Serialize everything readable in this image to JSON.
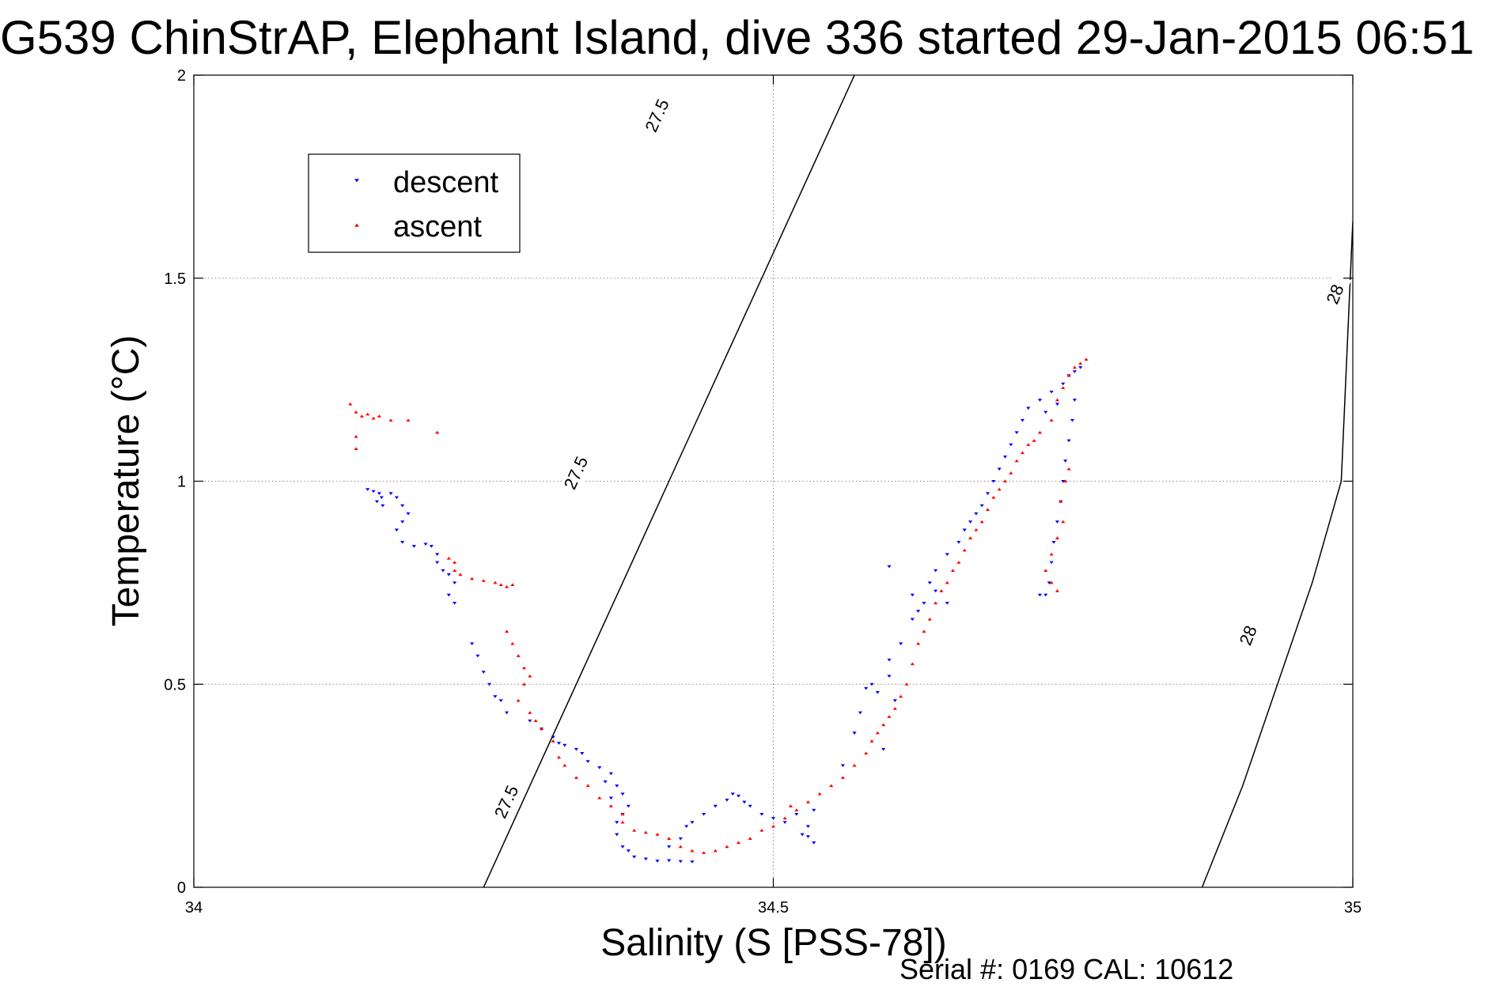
{
  "chart_data": {
    "type": "scatter",
    "title": "G539 ChinStrAP, Elephant Island, dive 336 started 29-Jan-2015 06:51",
    "xlabel": "Salinity (S [PSS-78])",
    "ylabel": "Temperature (°C)",
    "xlim": [
      34,
      35
    ],
    "ylim": [
      0,
      2
    ],
    "x_ticks": [
      "34",
      "34.5",
      "35"
    ],
    "y_ticks": [
      "0",
      "0.5",
      "1",
      "1.5",
      "2"
    ],
    "grid": true,
    "legend_position": "top-left",
    "footer": "Serial #: 0169 CAL: 10612",
    "contours": [
      {
        "label": "27.5",
        "color": "#000000",
        "points": [
          [
            34.25,
            0
          ],
          [
            34.29,
            0.25
          ],
          [
            34.33,
            0.5
          ],
          [
            34.37,
            0.75
          ],
          [
            34.41,
            1.0
          ],
          [
            34.45,
            1.25
          ],
          [
            34.49,
            1.5
          ],
          [
            34.53,
            1.75
          ],
          [
            34.57,
            2.0
          ]
        ],
        "label_positions": [
          [
            34.27,
            0.21
          ],
          [
            34.33,
            1.02
          ],
          [
            34.4,
            1.9
          ]
        ]
      },
      {
        "label": "28",
        "color": "#000000",
        "points": [
          [
            34.87,
            0
          ],
          [
            34.905,
            0.25
          ],
          [
            34.935,
            0.5
          ],
          [
            34.965,
            0.75
          ],
          [
            34.99,
            1.0
          ],
          [
            35.0,
            1.64
          ]
        ],
        "label_positions": [
          [
            34.91,
            0.62
          ],
          [
            34.985,
            1.46
          ]
        ]
      }
    ],
    "series": [
      {
        "name": "descent",
        "color": "#0000ff",
        "marker": "triangle-down",
        "points": [
          [
            34.15,
            0.98
          ],
          [
            34.155,
            0.975
          ],
          [
            34.16,
            0.97
          ],
          [
            34.162,
            0.96
          ],
          [
            34.158,
            0.95
          ],
          [
            34.163,
            0.94
          ],
          [
            34.17,
            0.97
          ],
          [
            34.175,
            0.96
          ],
          [
            34.18,
            0.94
          ],
          [
            34.185,
            0.92
          ],
          [
            34.18,
            0.9
          ],
          [
            34.175,
            0.88
          ],
          [
            34.18,
            0.85
          ],
          [
            34.19,
            0.84
          ],
          [
            34.2,
            0.845
          ],
          [
            34.205,
            0.84
          ],
          [
            34.21,
            0.82
          ],
          [
            34.21,
            0.8
          ],
          [
            34.215,
            0.78
          ],
          [
            34.22,
            0.77
          ],
          [
            34.225,
            0.75
          ],
          [
            34.22,
            0.72
          ],
          [
            34.225,
            0.7
          ],
          [
            34.24,
            0.6
          ],
          [
            34.245,
            0.57
          ],
          [
            34.25,
            0.53
          ],
          [
            34.255,
            0.5
          ],
          [
            34.26,
            0.47
          ],
          [
            34.265,
            0.46
          ],
          [
            34.27,
            0.43
          ],
          [
            34.29,
            0.41
          ],
          [
            34.3,
            0.39
          ],
          [
            34.31,
            0.37
          ],
          [
            34.315,
            0.355
          ],
          [
            34.32,
            0.35
          ],
          [
            34.33,
            0.34
          ],
          [
            34.335,
            0.33
          ],
          [
            34.34,
            0.31
          ],
          [
            34.35,
            0.295
          ],
          [
            34.36,
            0.28
          ],
          [
            34.355,
            0.26
          ],
          [
            34.365,
            0.25
          ],
          [
            34.37,
            0.23
          ],
          [
            34.36,
            0.22
          ],
          [
            34.375,
            0.2
          ],
          [
            34.37,
            0.18
          ],
          [
            34.365,
            0.16
          ],
          [
            34.365,
            0.13
          ],
          [
            34.37,
            0.1
          ],
          [
            34.375,
            0.09
          ],
          [
            34.38,
            0.075
          ],
          [
            34.39,
            0.07
          ],
          [
            34.4,
            0.065
          ],
          [
            34.41,
            0.066
          ],
          [
            34.42,
            0.064
          ],
          [
            34.43,
            0.063
          ],
          [
            34.41,
            0.1
          ],
          [
            34.42,
            0.12
          ],
          [
            34.425,
            0.15
          ],
          [
            34.43,
            0.16
          ],
          [
            34.44,
            0.18
          ],
          [
            34.45,
            0.2
          ],
          [
            34.46,
            0.215
          ],
          [
            34.465,
            0.23
          ],
          [
            34.47,
            0.225
          ],
          [
            34.475,
            0.21
          ],
          [
            34.48,
            0.2
          ],
          [
            34.49,
            0.18
          ],
          [
            34.5,
            0.17
          ],
          [
            34.51,
            0.16
          ],
          [
            34.52,
            0.18
          ],
          [
            34.525,
            0.13
          ],
          [
            34.53,
            0.125
          ],
          [
            34.535,
            0.11
          ],
          [
            34.53,
            0.15
          ],
          [
            34.535,
            0.19
          ],
          [
            34.56,
            0.3
          ],
          [
            34.57,
            0.38
          ],
          [
            34.575,
            0.43
          ],
          [
            34.58,
            0.49
          ],
          [
            34.585,
            0.5
          ],
          [
            34.59,
            0.48
          ],
          [
            34.6,
            0.52
          ],
          [
            34.605,
            0.46
          ],
          [
            34.595,
            0.34
          ],
          [
            34.6,
            0.56
          ],
          [
            34.61,
            0.6
          ],
          [
            34.62,
            0.66
          ],
          [
            34.625,
            0.68
          ],
          [
            34.6,
            0.79
          ],
          [
            34.62,
            0.72
          ],
          [
            34.63,
            0.7
          ],
          [
            34.635,
            0.75
          ],
          [
            34.64,
            0.73
          ],
          [
            34.65,
            0.7
          ],
          [
            34.64,
            0.78
          ],
          [
            34.65,
            0.82
          ],
          [
            34.66,
            0.85
          ],
          [
            34.665,
            0.88
          ],
          [
            34.67,
            0.9
          ],
          [
            34.675,
            0.92
          ],
          [
            34.68,
            0.94
          ],
          [
            34.685,
            0.97
          ],
          [
            34.69,
            1.0
          ],
          [
            34.695,
            1.03
          ],
          [
            34.7,
            1.06
          ],
          [
            34.705,
            1.09
          ],
          [
            34.71,
            1.12
          ],
          [
            34.715,
            1.15
          ],
          [
            34.72,
            1.18
          ],
          [
            34.73,
            1.2
          ],
          [
            34.735,
            1.17
          ],
          [
            34.74,
            1.22
          ],
          [
            34.745,
            1.19
          ],
          [
            34.75,
            1.24
          ],
          [
            34.755,
            1.26
          ],
          [
            34.76,
            1.27
          ],
          [
            34.765,
            1.28
          ],
          [
            34.76,
            1.2
          ],
          [
            34.758,
            1.15
          ],
          [
            34.755,
            1.1
          ],
          [
            34.752,
            1.05
          ],
          [
            34.75,
            1.0
          ],
          [
            34.748,
            0.95
          ],
          [
            34.745,
            0.9
          ],
          [
            34.742,
            0.85
          ],
          [
            34.74,
            0.8
          ],
          [
            34.738,
            0.75
          ],
          [
            34.735,
            0.72
          ],
          [
            34.73,
            0.72
          ]
        ]
      },
      {
        "name": "ascent",
        "color": "#ff0000",
        "marker": "triangle-up",
        "points": [
          [
            34.135,
            1.19
          ],
          [
            34.14,
            1.17
          ],
          [
            34.145,
            1.16
          ],
          [
            34.15,
            1.165
          ],
          [
            34.155,
            1.155
          ],
          [
            34.16,
            1.16
          ],
          [
            34.17,
            1.15
          ],
          [
            34.185,
            1.15
          ],
          [
            34.21,
            1.12
          ],
          [
            34.14,
            1.11
          ],
          [
            34.14,
            1.08
          ],
          [
            34.22,
            0.81
          ],
          [
            34.225,
            0.8
          ],
          [
            34.225,
            0.78
          ],
          [
            34.23,
            0.77
          ],
          [
            34.24,
            0.76
          ],
          [
            34.25,
            0.755
          ],
          [
            34.26,
            0.75
          ],
          [
            34.265,
            0.745
          ],
          [
            34.27,
            0.74
          ],
          [
            34.275,
            0.745
          ],
          [
            34.27,
            0.63
          ],
          [
            34.275,
            0.6
          ],
          [
            34.28,
            0.57
          ],
          [
            34.285,
            0.54
          ],
          [
            34.29,
            0.52
          ],
          [
            34.285,
            0.5
          ],
          [
            34.28,
            0.46
          ],
          [
            34.29,
            0.43
          ],
          [
            34.295,
            0.41
          ],
          [
            34.3,
            0.39
          ],
          [
            34.31,
            0.36
          ],
          [
            34.315,
            0.32
          ],
          [
            34.32,
            0.3
          ],
          [
            34.33,
            0.27
          ],
          [
            34.34,
            0.25
          ],
          [
            34.35,
            0.22
          ],
          [
            34.36,
            0.2
          ],
          [
            34.37,
            0.18
          ],
          [
            34.37,
            0.16
          ],
          [
            34.38,
            0.14
          ],
          [
            34.39,
            0.135
          ],
          [
            34.4,
            0.13
          ],
          [
            34.41,
            0.12
          ],
          [
            34.42,
            0.1
          ],
          [
            34.43,
            0.09
          ],
          [
            34.44,
            0.085
          ],
          [
            34.45,
            0.09
          ],
          [
            34.46,
            0.1
          ],
          [
            34.47,
            0.11
          ],
          [
            34.48,
            0.12
          ],
          [
            34.49,
            0.14
          ],
          [
            34.5,
            0.15
          ],
          [
            34.51,
            0.17
          ],
          [
            34.515,
            0.2
          ],
          [
            34.52,
            0.19
          ],
          [
            34.53,
            0.21
          ],
          [
            34.54,
            0.23
          ],
          [
            34.55,
            0.25
          ],
          [
            34.56,
            0.27
          ],
          [
            34.57,
            0.3
          ],
          [
            34.58,
            0.33
          ],
          [
            34.585,
            0.36
          ],
          [
            34.59,
            0.38
          ],
          [
            34.595,
            0.4
          ],
          [
            34.6,
            0.42
          ],
          [
            34.605,
            0.44
          ],
          [
            34.61,
            0.47
          ],
          [
            34.615,
            0.5
          ],
          [
            34.62,
            0.55
          ],
          [
            34.625,
            0.6
          ],
          [
            34.63,
            0.63
          ],
          [
            34.635,
            0.66
          ],
          [
            34.64,
            0.7
          ],
          [
            34.645,
            0.73
          ],
          [
            34.65,
            0.75
          ],
          [
            34.655,
            0.78
          ],
          [
            34.66,
            0.8
          ],
          [
            34.665,
            0.83
          ],
          [
            34.67,
            0.86
          ],
          [
            34.675,
            0.88
          ],
          [
            34.68,
            0.9
          ],
          [
            34.685,
            0.93
          ],
          [
            34.69,
            0.96
          ],
          [
            34.695,
            0.98
          ],
          [
            34.7,
            1.0
          ],
          [
            34.705,
            1.02
          ],
          [
            34.71,
            1.05
          ],
          [
            34.715,
            1.07
          ],
          [
            34.72,
            1.09
          ],
          [
            34.725,
            1.1
          ],
          [
            34.73,
            1.12
          ],
          [
            34.74,
            1.15
          ],
          [
            34.745,
            1.2
          ],
          [
            34.75,
            1.23
          ],
          [
            34.755,
            1.26
          ],
          [
            34.76,
            1.28
          ],
          [
            34.765,
            1.29
          ],
          [
            34.77,
            1.3
          ],
          [
            34.735,
            0.78
          ],
          [
            34.74,
            0.82
          ],
          [
            34.745,
            0.86
          ],
          [
            34.75,
            0.9
          ],
          [
            34.748,
            0.95
          ],
          [
            34.752,
            1.0
          ],
          [
            34.755,
            1.03
          ],
          [
            34.74,
            0.75
          ],
          [
            34.745,
            0.73
          ]
        ]
      }
    ]
  }
}
